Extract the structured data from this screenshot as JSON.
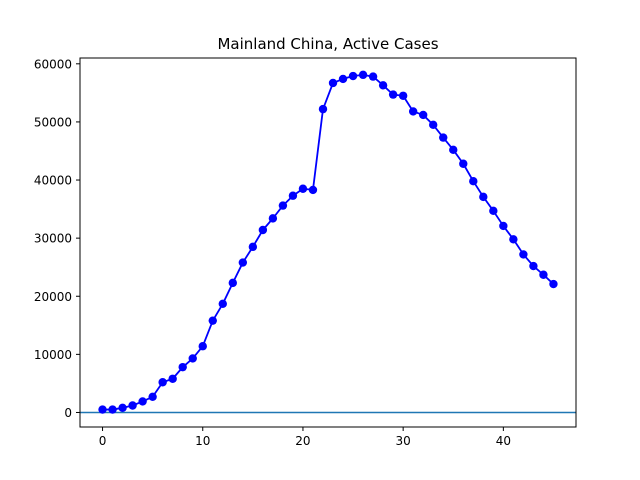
{
  "chart_data": {
    "type": "line",
    "title": "Mainland China, Active Cases",
    "xlabel": "",
    "ylabel": "",
    "xlim": [
      -2.25,
      47.25
    ],
    "ylim": [
      -2500,
      61000
    ],
    "xticks": [
      0,
      10,
      20,
      30,
      40
    ],
    "yticks": [
      0,
      10000,
      20000,
      30000,
      40000,
      50000,
      60000
    ],
    "grid": false,
    "series": [
      {
        "color": "#0000ff",
        "marker": "circle",
        "x": [
          0,
          1,
          2,
          3,
          4,
          5,
          6,
          7,
          8,
          9,
          10,
          11,
          12,
          13,
          14,
          15,
          16,
          17,
          18,
          19,
          20,
          21,
          22,
          23,
          24,
          25,
          26,
          27,
          28,
          29,
          30,
          31,
          32,
          33,
          34,
          35,
          36,
          37,
          38,
          39,
          40,
          41,
          42,
          43,
          44,
          45
        ],
        "y": [
          500,
          500,
          800,
          1200,
          1900,
          2700,
          5200,
          5800,
          7800,
          9300,
          11400,
          15800,
          18700,
          22300,
          25800,
          28500,
          31400,
          33400,
          35600,
          37300,
          38500,
          38300,
          52200,
          56700,
          57400,
          57900,
          58100,
          57800,
          56300,
          54700,
          54500,
          51800,
          51200,
          49500,
          47300,
          45200,
          42800,
          39800,
          37100,
          34700,
          32100,
          29800,
          27200,
          25200,
          23700,
          22100
        ]
      }
    ],
    "reference_line": {
      "y": 0,
      "color": "#1f77b4"
    }
  }
}
